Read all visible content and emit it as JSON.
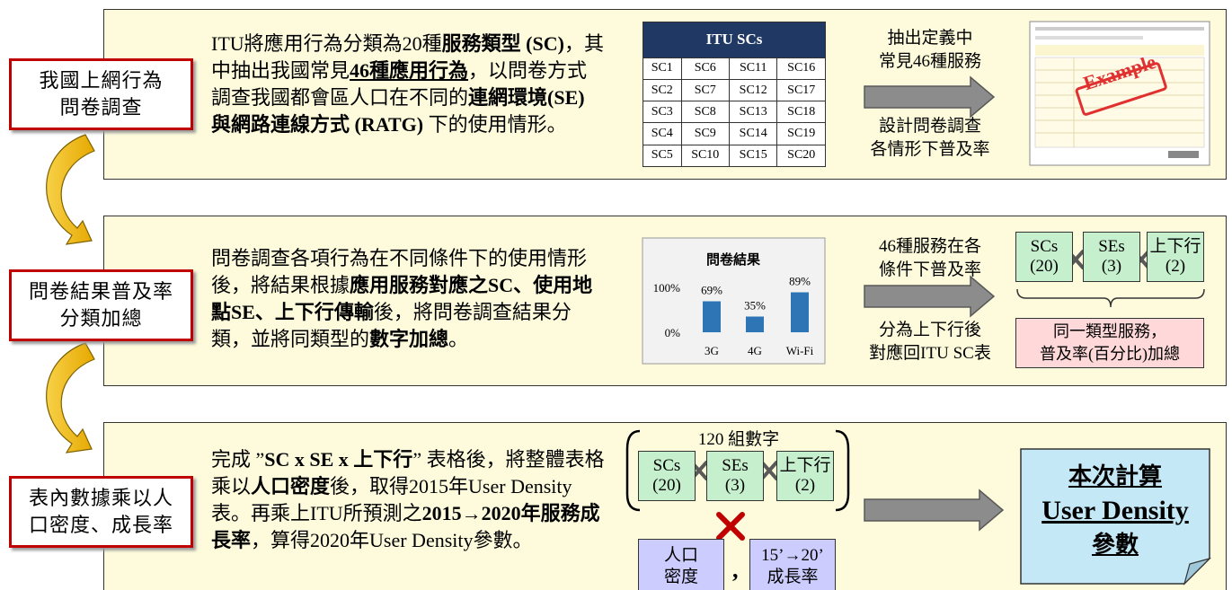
{
  "steps": [
    {
      "label": [
        "我國上網行為",
        "問卷調查"
      ]
    },
    {
      "label": [
        "問卷結果普及率",
        "分類加總"
      ]
    },
    {
      "label": [
        "表內數據乘以人",
        "口密度、成長率"
      ]
    }
  ],
  "panels": [
    {
      "text": [
        "ITU將應用行為分類為20種",
        "服務類型 (SC)",
        "，其中抽出我國常見",
        "46種應用行為",
        "，以問卷方式調查我國都會區人口在不同的",
        "連網環境(SE) 與網路連線方式 (RATG)",
        " 下的使用情形。"
      ],
      "arrow_top": [
        "抽出定義中",
        "常見46種服務"
      ],
      "arrow_bottom": [
        "設計問卷調查",
        "各情形下普及率"
      ]
    },
    {
      "text": [
        "問卷調查各項行為在不同條件下的使用情形後，將結果根據",
        "應用服務對應之SC、使用地點SE、上下行傳輸",
        "後，將問卷調查結果分類，並將同類型的",
        "數字加總",
        "。"
      ],
      "arrow_top": [
        "46種服務在各",
        "條件下普及率"
      ],
      "arrow_bottom": [
        "分為上下行後",
        "對應回ITU SC表"
      ]
    },
    {
      "text": [
        "完成 ”",
        "SC x SE x 上下行",
        "” 表格後，將整體表格乘以",
        "人口密度",
        "後，取得2015年User Density表。再乘上ITU所預測之",
        "2015→2020年服務成長率",
        "，算得2020年User Density參數。"
      ]
    }
  ],
  "itu_table": {
    "title": "ITU SCs",
    "rows": [
      [
        "SC1",
        "SC6",
        "SC11",
        "SC16"
      ],
      [
        "SC2",
        "SC7",
        "SC12",
        "SC17"
      ],
      [
        "SC3",
        "SC8",
        "SC13",
        "SC18"
      ],
      [
        "SC4",
        "SC9",
        "SC14",
        "SC19"
      ],
      [
        "SC5",
        "SC10",
        "SC15",
        "SC20"
      ]
    ]
  },
  "example_stamp": "Example",
  "survey_chart": {
    "type": "bar",
    "title": "問卷結果",
    "categories": [
      "3G",
      "4G",
      "Wi-Fi"
    ],
    "values": [
      69,
      35,
      89
    ],
    "value_labels": [
      "69%",
      "35%",
      "89%"
    ],
    "color": "#2e75b6",
    "ylim": [
      0,
      100
    ],
    "yticks": [
      {
        "value": 100,
        "label": "100%"
      },
      {
        "value": 0,
        "label": "0%"
      }
    ]
  },
  "factors": [
    [
      "SCs",
      "(20)"
    ],
    [
      "SEs",
      "(3)"
    ],
    [
      "上下行",
      "(2)"
    ]
  ],
  "sum_note": [
    "同一類型服務，",
    "普及率(百分比)加總"
  ],
  "group_label": "120 組數字",
  "multipliers": [
    [
      "人口",
      "密度"
    ],
    [
      "15’→20’",
      "成長率"
    ]
  ],
  "comma": ",",
  "result": [
    "本次計算",
    "User Density",
    "參數"
  ]
}
